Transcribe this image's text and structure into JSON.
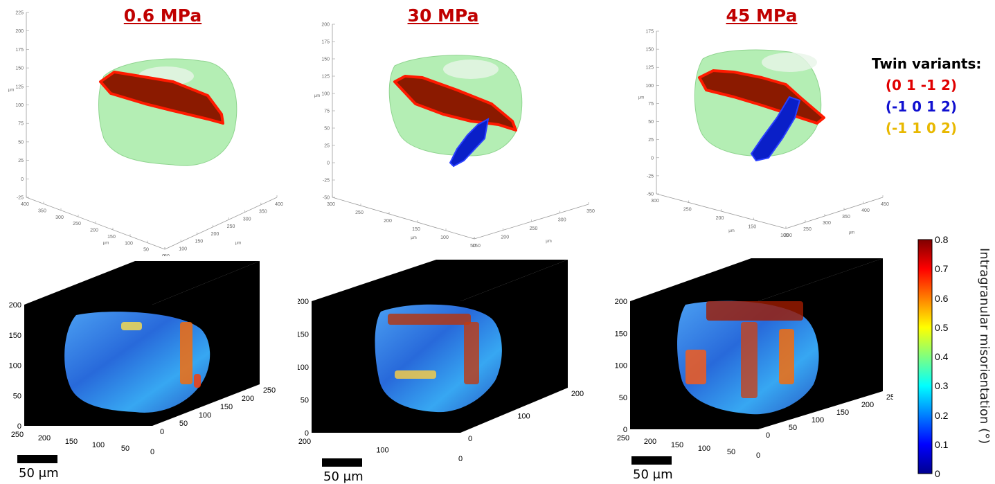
{
  "panels": [
    {
      "title": "0.6 MPa",
      "top_axis": {
        "z_ticks": [
          "225",
          "200",
          "175",
          "150",
          "125",
          "100",
          "75",
          "50",
          "25",
          "0",
          "-25"
        ],
        "z_label": "μm",
        "x_ticks": [
          "400",
          "350",
          "300",
          "250",
          "200",
          "150",
          "100",
          "50",
          "0"
        ],
        "x_label": "μm",
        "y_ticks": [
          "50",
          "100",
          "150",
          "200",
          "250",
          "300",
          "350",
          "400"
        ],
        "y_label": "μm"
      },
      "twins": [
        "red"
      ],
      "bottom_axis": {
        "z_ticks": [
          "200",
          "150",
          "100",
          "50",
          "0"
        ],
        "x_ticks": [
          "250",
          "200",
          "150",
          "100",
          "50",
          "0"
        ],
        "y_ticks": [
          "0",
          "50",
          "100",
          "150",
          "200",
          "250"
        ]
      },
      "scale_label": "50 μm"
    },
    {
      "title": "30 MPa",
      "top_axis": {
        "z_ticks": [
          "200",
          "175",
          "150",
          "125",
          "100",
          "75",
          "50",
          "25",
          "0",
          "-25",
          "-50"
        ],
        "z_label": "μm",
        "x_ticks": [
          "300",
          "250",
          "200",
          "150",
          "100",
          "50"
        ],
        "x_label": "μm",
        "y_ticks": [
          "150",
          "200",
          "250",
          "300",
          "350"
        ],
        "y_label": "μm"
      },
      "twins": [
        "red",
        "blue"
      ],
      "bottom_axis": {
        "z_ticks": [
          "200",
          "150",
          "100",
          "50",
          "0"
        ],
        "x_ticks": [
          "200",
          "100",
          "0"
        ],
        "y_ticks": [
          "0",
          "100",
          "200"
        ]
      },
      "scale_label": "50 μm"
    },
    {
      "title": "45 MPa",
      "top_axis": {
        "z_ticks": [
          "175",
          "150",
          "125",
          "100",
          "75",
          "50",
          "25",
          "0",
          "-25",
          "-50"
        ],
        "z_label": "μm",
        "x_ticks": [
          "300",
          "250",
          "200",
          "150",
          "100"
        ],
        "x_label": "μm",
        "y_ticks": [
          "200",
          "250",
          "300",
          "350",
          "400",
          "450"
        ],
        "y_label": "μm"
      },
      "twins": [
        "red",
        "blue"
      ],
      "bottom_axis": {
        "z_ticks": [
          "200",
          "150",
          "100",
          "50",
          "0"
        ],
        "x_ticks": [
          "250",
          "200",
          "150",
          "100",
          "50",
          "0"
        ],
        "y_ticks": [
          "0",
          "50",
          "100",
          "150",
          "200",
          "250"
        ]
      },
      "scale_label": "50 μm"
    }
  ],
  "legend": {
    "title": "Twin variants:",
    "variants": [
      {
        "label": "(0 1 -1 2)",
        "color": "#e00000"
      },
      {
        "label": "(-1 0 1 2)",
        "color": "#1010d0"
      },
      {
        "label": "(-1 1 0 2)",
        "color": "#e8b800"
      }
    ]
  },
  "colorbar": {
    "label": "Intragranular misorientation (°)",
    "ticks": [
      "0.8",
      "0.7",
      "0.6",
      "0.5",
      "0.4",
      "0.3",
      "0.2",
      "0.1",
      "0"
    ],
    "colormap": "jet"
  },
  "colors": {
    "title": "#c00000",
    "grain": "#9be89b",
    "twin_red": "#8b1a00",
    "twin_red_edge": "#ff1a00",
    "twin_blue": "#0a1fc8"
  }
}
